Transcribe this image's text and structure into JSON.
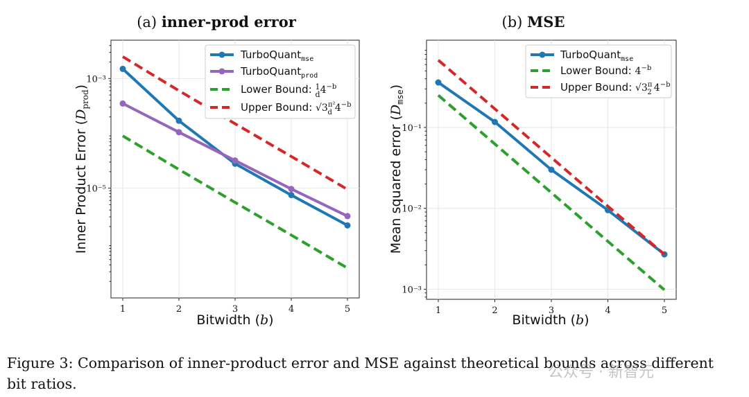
{
  "figure": {
    "caption_line1": "Figure 3: Comparison of inner-product error and MSE against theoretical bounds across different",
    "caption_line2": "bit ratios.",
    "watermark": "公众号 · 新智元"
  },
  "chart_data": [
    {
      "type": "line",
      "title_prefix": "(a)",
      "title": "inner-prod error",
      "xlabel": "Bitwidth (b)",
      "ylabel": "Inner Product Error (D_prod)",
      "x": [
        1,
        2,
        3,
        4,
        5
      ],
      "xticks": [
        "1",
        "2",
        "3",
        "4",
        "5"
      ],
      "yscale": "log",
      "ylim": [
        1e-07,
        0.005
      ],
      "yticks": [
        {
          "value": 0.001,
          "label": "10⁻³"
        },
        {
          "value": 1e-05,
          "label": "10⁻⁵"
        }
      ],
      "grid": true,
      "legend_position": "top-right",
      "series": [
        {
          "name": "TurboQuant",
          "sub": "mse",
          "color": "#1f77b4",
          "style": "solid",
          "markers": true,
          "values": [
            0.0015,
            0.00017,
            2.8e-05,
            7.5e-06,
            2.1e-06
          ]
        },
        {
          "name": "TurboQuant",
          "sub": "prod",
          "color": "#9467bd",
          "style": "solid",
          "markers": true,
          "values": [
            0.00035,
            0.000105,
            3.2e-05,
            9.7e-06,
            3.1e-06
          ]
        },
        {
          "name": "Lower Bound: (1/d)4⁻ᵇ",
          "color": "#2ca02c",
          "style": "dashed",
          "markers": false,
          "values": [
            9e-05,
            2.2e-05,
            5.5e-06,
            1.4e-06,
            3.5e-07
          ]
        },
        {
          "name": "Upper Bound: √3(π²/d)4⁻ᵇ",
          "color": "#d62728",
          "style": "dashed",
          "markers": false,
          "values": [
            0.0025,
            0.0006,
            0.00015,
            3.8e-05,
            9.5e-06
          ]
        }
      ]
    },
    {
      "type": "line",
      "title_prefix": "(b)",
      "title": "MSE",
      "xlabel": "Bitwidth (b)",
      "ylabel": "Mean squared error (D_mse)",
      "x": [
        1,
        2,
        3,
        4,
        5
      ],
      "xticks": [
        "1",
        "2",
        "3",
        "4",
        "5"
      ],
      "yscale": "log",
      "ylim": [
        0.00075,
        1.2
      ],
      "yticks": [
        {
          "value": 0.1,
          "label": "10⁻¹"
        },
        {
          "value": 0.01,
          "label": "10⁻²"
        },
        {
          "value": 0.001,
          "label": "10⁻³"
        }
      ],
      "grid": true,
      "legend_position": "top-right",
      "series": [
        {
          "name": "TurboQuant",
          "sub": "mse",
          "color": "#1f77b4",
          "style": "solid",
          "markers": true,
          "values": [
            0.36,
            0.117,
            0.03,
            0.0095,
            0.0027
          ]
        },
        {
          "name": "Lower Bound: 4⁻ᵇ",
          "color": "#2ca02c",
          "style": "dashed",
          "markers": false,
          "values": [
            0.25,
            0.0625,
            0.0156,
            0.0039,
            0.00098
          ]
        },
        {
          "name": "Upper Bound: √3(π/2)4⁻ᵇ",
          "color": "#d62728",
          "style": "dashed",
          "markers": false,
          "values": [
            0.68,
            0.17,
            0.0425,
            0.0106,
            0.0027
          ]
        }
      ]
    }
  ]
}
